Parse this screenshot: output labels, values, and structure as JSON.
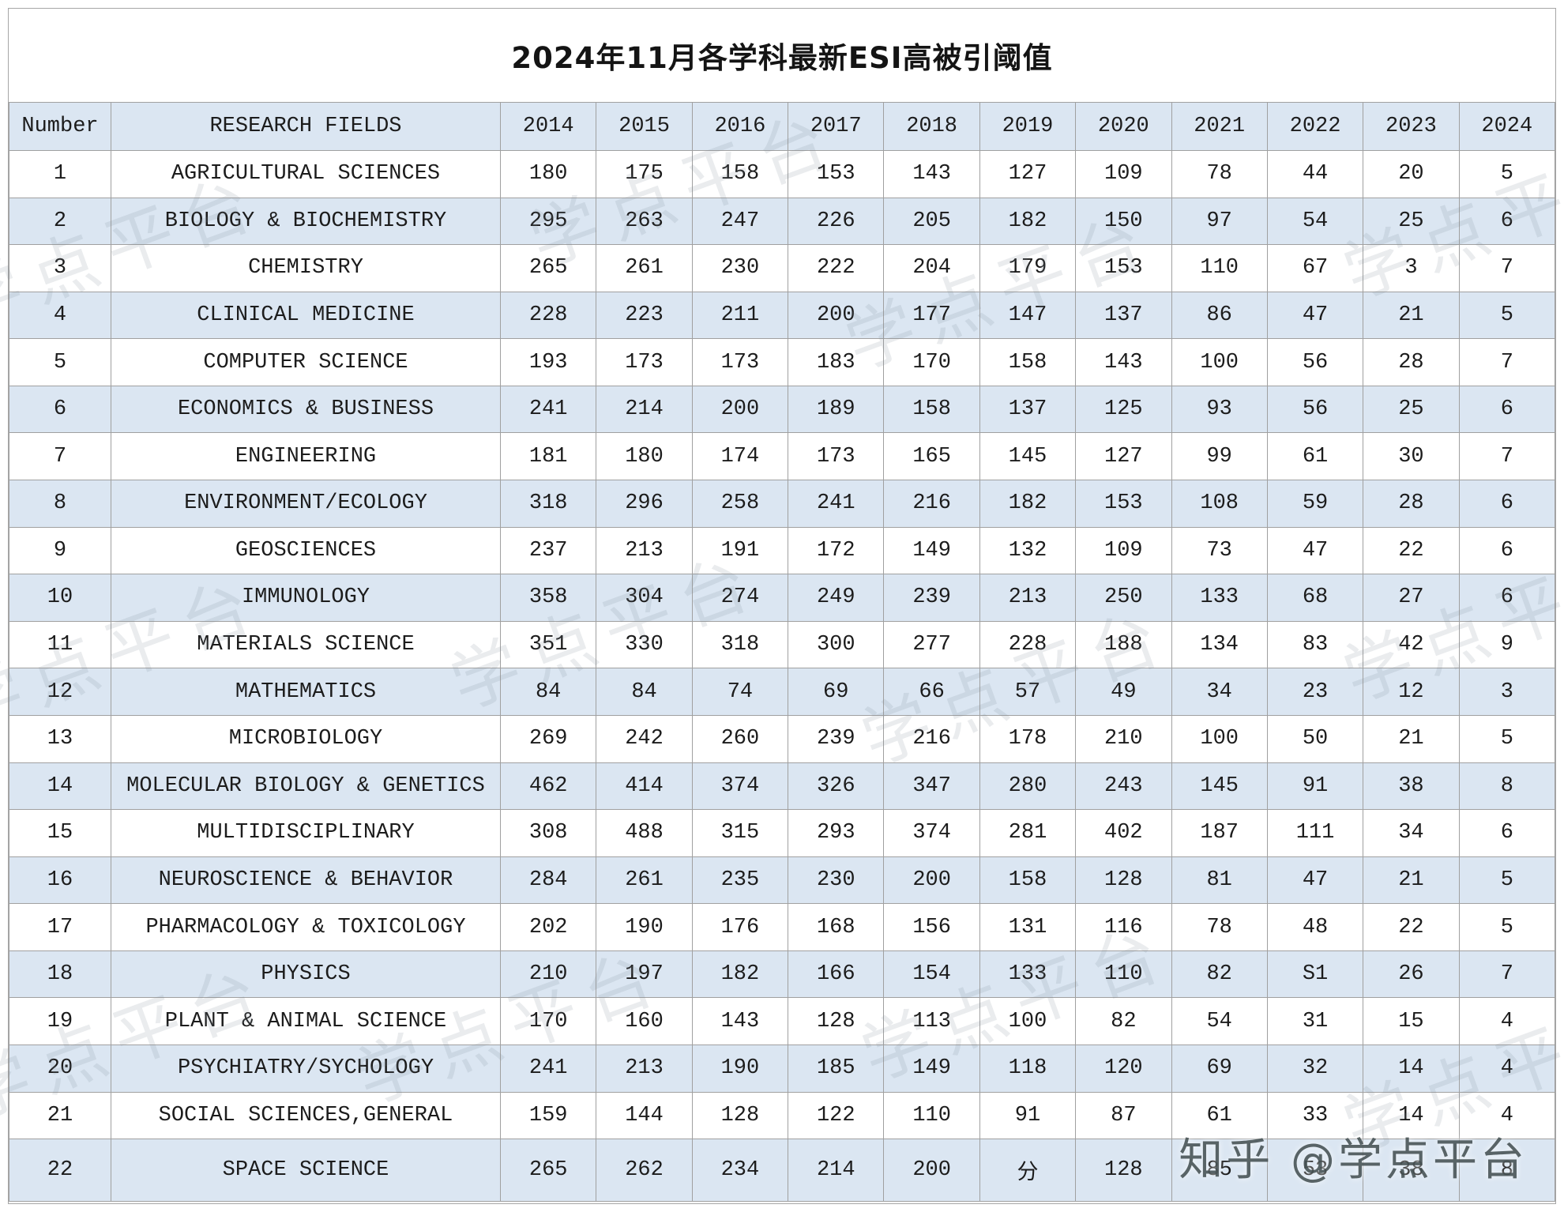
{
  "chart_data": {
    "type": "table",
    "title": "2024年11月各学科最新ESI高被引阈值",
    "columns": [
      "Number",
      "RESEARCH FIELDS",
      "2014",
      "2015",
      "2016",
      "2017",
      "2018",
      "2019",
      "2020",
      "2021",
      "2022",
      "2023",
      "2024"
    ],
    "rows": [
      {
        "number": "1",
        "field": "AGRICULTURAL SCIENCES",
        "values": [
          "180",
          "175",
          "158",
          "153",
          "143",
          "127",
          "109",
          "78",
          "44",
          "20",
          "5"
        ]
      },
      {
        "number": "2",
        "field": "BIOLOGY & BIOCHEMISTRY",
        "values": [
          "295",
          "263",
          "247",
          "226",
          "205",
          "182",
          "150",
          "97",
          "54",
          "25",
          "6"
        ]
      },
      {
        "number": "3",
        "field": "CHEMISTRY",
        "values": [
          "265",
          "261",
          "230",
          "222",
          "204",
          "179",
          "153",
          "110",
          "67",
          "3",
          "7"
        ]
      },
      {
        "number": "4",
        "field": "CLINICAL MEDICINE",
        "values": [
          "228",
          "223",
          "211",
          "200",
          "177",
          "147",
          "137",
          "86",
          "47",
          "21",
          "5"
        ]
      },
      {
        "number": "5",
        "field": "COMPUTER SCIENCE",
        "values": [
          "193",
          "173",
          "173",
          "183",
          "170",
          "158",
          "143",
          "100",
          "56",
          "28",
          "7"
        ]
      },
      {
        "number": "6",
        "field": "ECONOMICS & BUSINESS",
        "values": [
          "241",
          "214",
          "200",
          "189",
          "158",
          "137",
          "125",
          "93",
          "56",
          "25",
          "6"
        ]
      },
      {
        "number": "7",
        "field": "ENGINEERING",
        "values": [
          "181",
          "180",
          "174",
          "173",
          "165",
          "145",
          "127",
          "99",
          "61",
          "30",
          "7"
        ]
      },
      {
        "number": "8",
        "field": "ENVIRONMENT/ECOLOGY",
        "values": [
          "318",
          "296",
          "258",
          "241",
          "216",
          "182",
          "153",
          "108",
          "59",
          "28",
          "6"
        ]
      },
      {
        "number": "9",
        "field": "GEOSCIENCES",
        "values": [
          "237",
          "213",
          "191",
          "172",
          "149",
          "132",
          "109",
          "73",
          "47",
          "22",
          "6"
        ]
      },
      {
        "number": "10",
        "field": "IMMUNOLOGY",
        "values": [
          "358",
          "304",
          "274",
          "249",
          "239",
          "213",
          "250",
          "133",
          "68",
          "27",
          "6"
        ]
      },
      {
        "number": "11",
        "field": "MATERIALS SCIENCE",
        "values": [
          "351",
          "330",
          "318",
          "300",
          "277",
          "228",
          "188",
          "134",
          "83",
          "42",
          "9"
        ]
      },
      {
        "number": "12",
        "field": "MATHEMATICS",
        "values": [
          "84",
          "84",
          "74",
          "69",
          "66",
          "57",
          "49",
          "34",
          "23",
          "12",
          "3"
        ]
      },
      {
        "number": "13",
        "field": "MICROBIOLOGY",
        "values": [
          "269",
          "242",
          "260",
          "239",
          "216",
          "178",
          "210",
          "100",
          "50",
          "21",
          "5"
        ]
      },
      {
        "number": "14",
        "field": "MOLECULAR BIOLOGY & GENETICS",
        "values": [
          "462",
          "414",
          "374",
          "326",
          "347",
          "280",
          "243",
          "145",
          "91",
          "38",
          "8"
        ]
      },
      {
        "number": "15",
        "field": "MULTIDISCIPLINARY",
        "values": [
          "308",
          "488",
          "315",
          "293",
          "374",
          "281",
          "402",
          "187",
          "111",
          "34",
          "6"
        ]
      },
      {
        "number": "16",
        "field": "NEUROSCIENCE & BEHAVIOR",
        "values": [
          "284",
          "261",
          "235",
          "230",
          "200",
          "158",
          "128",
          "81",
          "47",
          "21",
          "5"
        ]
      },
      {
        "number": "17",
        "field": "PHARMACOLOGY & TOXICOLOGY",
        "values": [
          "202",
          "190",
          "176",
          "168",
          "156",
          "131",
          "116",
          "78",
          "48",
          "22",
          "5"
        ]
      },
      {
        "number": "18",
        "field": "PHYSICS",
        "values": [
          "210",
          "197",
          "182",
          "166",
          "154",
          "133",
          "110",
          "82",
          "S1",
          "26",
          "7"
        ]
      },
      {
        "number": "19",
        "field": "PLANT & ANIMAL SCIENCE",
        "values": [
          "170",
          "160",
          "143",
          "128",
          "113",
          "100",
          "82",
          "54",
          "31",
          "15",
          "4"
        ]
      },
      {
        "number": "20",
        "field": "PSYCHIATRY/SYCHOLOGY",
        "values": [
          "241",
          "213",
          "190",
          "185",
          "149",
          "118",
          "120",
          "69",
          "32",
          "14",
          "4"
        ]
      },
      {
        "number": "21",
        "field": "SOCIAL SCIENCES,GENERAL",
        "values": [
          "159",
          "144",
          "128",
          "122",
          "110",
          "91",
          "87",
          "61",
          "33",
          "14",
          "4"
        ]
      },
      {
        "number": "22",
        "field": "SPACE SCIENCE",
        "values": [
          "265",
          "262",
          "234",
          "214",
          "200",
          "分",
          "128",
          "85",
          "53",
          "38",
          "8"
        ]
      }
    ]
  },
  "watermark": {
    "diagonal_text": "学点平台",
    "credit": "知乎 @学点平台"
  },
  "style": {
    "header_bg": "#dbe6f2",
    "alt_row_bg": "#dbe6f2",
    "grid_color": "#a0a0a0",
    "title_color": "#141414"
  }
}
